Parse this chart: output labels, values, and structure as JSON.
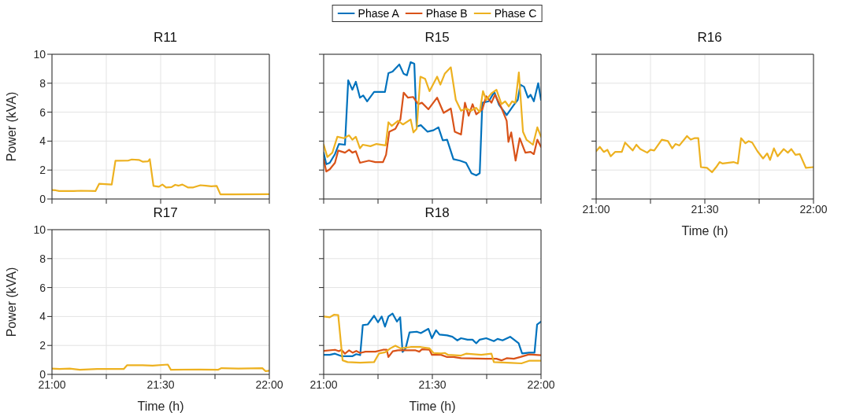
{
  "chart_data": [
    {
      "type": "line",
      "title": "R11",
      "ylabel": "Power (kVA)",
      "xlim": [
        21,
        22
      ],
      "xticks": [
        {
          "value": 21,
          "label": null
        },
        {
          "value": 21.25,
          "label": null
        },
        {
          "value": 21.5,
          "label": null
        },
        {
          "value": 21.75,
          "label": null
        },
        {
          "value": 22,
          "label": null
        }
      ],
      "ylim": [
        0,
        10
      ],
      "yticks": [
        0,
        2,
        4,
        6,
        8,
        10
      ],
      "grid": true,
      "tick_labels": "y",
      "series": [
        {
          "color": "#edb120",
          "x": [
            21,
            21.017,
            21.033,
            21.1,
            21.133,
            21.2,
            21.217,
            21.275,
            21.292,
            21.35,
            21.367,
            21.4,
            21.417,
            21.442,
            21.45,
            21.467,
            21.492,
            21.508,
            21.525,
            21.55,
            21.567,
            21.583,
            21.6,
            21.625,
            21.65,
            21.683,
            21.708,
            21.733,
            21.758,
            21.775,
            21.833,
            22
          ],
          "values": [
            0.62,
            0.6,
            0.55,
            0.55,
            0.57,
            0.55,
            1.05,
            1.0,
            2.64,
            2.65,
            2.73,
            2.7,
            2.58,
            2.6,
            2.75,
            0.9,
            0.85,
            1.0,
            0.8,
            0.82,
            0.98,
            0.92,
            1.0,
            0.8,
            0.8,
            0.95,
            0.92,
            0.88,
            0.9,
            0.32,
            0.32,
            0.33
          ]
        }
      ]
    },
    {
      "type": "line",
      "title": "R15",
      "xlim": [
        21,
        22
      ],
      "xticks": [
        {
          "value": 21,
          "label": null
        },
        {
          "value": 21.25,
          "label": null
        },
        {
          "value": 21.5,
          "label": null
        },
        {
          "value": 21.75,
          "label": null
        },
        {
          "value": 22,
          "label": null
        }
      ],
      "ylim": [
        0,
        10
      ],
      "yticks": [
        {
          "value": 0,
          "label": null
        },
        {
          "value": 2,
          "label": null
        },
        {
          "value": 4,
          "label": null
        },
        {
          "value": 6,
          "label": null
        },
        {
          "value": 8,
          "label": null
        },
        {
          "value": 10,
          "label": null
        }
      ],
      "grid": true,
      "tick_labels": false,
      "legend": "top",
      "series": [
        {
          "name": "Phase A",
          "color": "#0072bd",
          "x": [
            21,
            21.012,
            21.028,
            21.052,
            21.07,
            21.098,
            21.113,
            21.132,
            21.148,
            21.167,
            21.182,
            21.2,
            21.232,
            21.282,
            21.298,
            21.317,
            21.348,
            21.368,
            21.383,
            21.4,
            21.417,
            21.428,
            21.447,
            21.478,
            21.505,
            21.528,
            21.548,
            21.568,
            21.597,
            21.627,
            21.655,
            21.68,
            21.702,
            21.718,
            21.73,
            21.76,
            21.785,
            21.807,
            21.842,
            21.875,
            21.893,
            21.905,
            21.922,
            21.94,
            21.952,
            21.967,
            21.987,
            22
          ],
          "values": [
            3.2,
            2.4,
            2.5,
            3.1,
            3.8,
            3.75,
            8.2,
            7.55,
            8.1,
            7.0,
            7.15,
            6.75,
            7.4,
            7.4,
            8.7,
            8.8,
            9.3,
            8.65,
            8.55,
            9.45,
            9.35,
            5.0,
            5.1,
            4.65,
            4.75,
            4.95,
            4.05,
            4.1,
            2.75,
            2.65,
            2.5,
            1.78,
            1.63,
            1.78,
            6.65,
            6.75,
            7.4,
            6.5,
            5.8,
            6.5,
            6.85,
            7.9,
            7.75,
            7.0,
            7.2,
            6.75,
            8.0,
            6.85
          ]
        },
        {
          "name": "Phase B",
          "color": "#d95319",
          "x": [
            21,
            21.012,
            21.028,
            21.052,
            21.067,
            21.098,
            21.117,
            21.132,
            21.148,
            21.167,
            21.208,
            21.238,
            21.273,
            21.287,
            21.302,
            21.33,
            21.353,
            21.368,
            21.388,
            21.412,
            21.435,
            21.452,
            21.482,
            21.522,
            21.552,
            21.585,
            21.603,
            21.632,
            21.65,
            21.667,
            21.685,
            21.702,
            21.73,
            21.748,
            21.772,
            21.788,
            21.818,
            21.842,
            21.85,
            21.863,
            21.883,
            21.902,
            21.928,
            21.952,
            21.967,
            21.983,
            22
          ],
          "values": [
            2.75,
            1.9,
            2.05,
            2.5,
            3.35,
            3.2,
            3.4,
            3.2,
            3.3,
            2.5,
            2.65,
            2.55,
            2.55,
            3.05,
            4.65,
            4.85,
            5.5,
            7.35,
            7.0,
            7.05,
            6.55,
            6.65,
            6.2,
            7.0,
            5.95,
            6.25,
            4.65,
            4.45,
            6.65,
            5.75,
            6.55,
            5.85,
            6.2,
            7.1,
            6.65,
            7.2,
            6.3,
            5.4,
            3.95,
            4.6,
            2.65,
            4.2,
            3.2,
            3.25,
            3.1,
            4.1,
            3.6
          ]
        },
        {
          "name": "Phase C",
          "color": "#edb120",
          "x": [
            21,
            21.017,
            21.04,
            21.063,
            21.093,
            21.117,
            21.132,
            21.148,
            21.167,
            21.18,
            21.215,
            21.243,
            21.285,
            21.298,
            21.313,
            21.342,
            21.365,
            21.4,
            21.413,
            21.428,
            21.445,
            21.467,
            21.487,
            21.522,
            21.537,
            21.557,
            21.585,
            21.608,
            21.632,
            21.655,
            21.678,
            21.702,
            21.718,
            21.733,
            21.748,
            21.772,
            21.795,
            21.818,
            21.835,
            21.852,
            21.867,
            21.882,
            21.898,
            21.917,
            21.933,
            21.963,
            21.983,
            22
          ],
          "values": [
            3.75,
            2.9,
            3.2,
            4.3,
            4.2,
            4.4,
            4.1,
            4.3,
            3.5,
            3.75,
            3.65,
            3.8,
            3.7,
            5.3,
            5.05,
            5.4,
            5.15,
            5.5,
            4.6,
            4.85,
            8.45,
            8.3,
            7.45,
            8.45,
            7.9,
            8.65,
            9.1,
            6.85,
            6.1,
            6.25,
            6.1,
            6.3,
            6.0,
            7.45,
            6.85,
            7.3,
            7.55,
            6.55,
            6.75,
            6.4,
            6.75,
            6.65,
            8.75,
            4.65,
            4.1,
            3.75,
            4.95,
            4.3
          ]
        }
      ]
    },
    {
      "type": "line",
      "title": "R16",
      "xlabel": "Time (h)",
      "xlim": [
        21,
        22
      ],
      "xticks": [
        {
          "value": 21,
          "label": "21:00"
        },
        {
          "value": 21.25,
          "label": null
        },
        {
          "value": 21.5,
          "label": "21:30"
        },
        {
          "value": 21.75,
          "label": null
        },
        {
          "value": 22,
          "label": "22:00"
        }
      ],
      "ylim": [
        0,
        10
      ],
      "yticks": [
        {
          "value": 0,
          "label": null
        },
        {
          "value": 2,
          "label": null
        },
        {
          "value": 4,
          "label": null
        },
        {
          "value": 6,
          "label": null
        },
        {
          "value": 8,
          "label": null
        },
        {
          "value": 10,
          "label": null
        }
      ],
      "grid": true,
      "tick_labels": "x",
      "series": [
        {
          "color": "#edb120",
          "x": [
            21,
            21.017,
            21.035,
            21.052,
            21.067,
            21.087,
            21.118,
            21.133,
            21.168,
            21.185,
            21.203,
            21.235,
            21.25,
            21.267,
            21.302,
            21.33,
            21.35,
            21.365,
            21.383,
            21.418,
            21.435,
            21.452,
            21.47,
            21.482,
            21.51,
            21.533,
            21.552,
            21.568,
            21.582,
            21.632,
            21.652,
            21.667,
            21.687,
            21.702,
            21.718,
            21.742,
            21.768,
            21.787,
            21.8,
            21.818,
            21.835,
            21.863,
            21.882,
            21.898,
            21.917,
            21.937,
            21.965,
            22
          ],
          "values": [
            3.3,
            3.6,
            3.25,
            3.4,
            2.95,
            3.25,
            3.25,
            3.9,
            3.35,
            3.75,
            3.45,
            3.2,
            3.4,
            3.35,
            4.1,
            4.0,
            3.5,
            3.8,
            3.7,
            4.35,
            4.1,
            4.2,
            4.2,
            2.2,
            2.15,
            1.85,
            2.2,
            2.55,
            2.45,
            2.55,
            2.45,
            4.2,
            3.85,
            4.0,
            3.9,
            3.3,
            2.8,
            3.15,
            2.7,
            3.5,
            2.95,
            3.45,
            3.2,
            3.45,
            3.05,
            3.1,
            2.15,
            2.2
          ]
        }
      ]
    },
    {
      "type": "line",
      "title": "R17",
      "xlabel": "Time (h)",
      "ylabel": "Power (kVA)",
      "xlim": [
        21,
        22
      ],
      "xticks": [
        {
          "value": 21,
          "label": "21:00"
        },
        {
          "value": 21.25,
          "label": null
        },
        {
          "value": 21.5,
          "label": "21:30"
        },
        {
          "value": 21.75,
          "label": null
        },
        {
          "value": 22,
          "label": "22:00"
        }
      ],
      "ylim": [
        0,
        10
      ],
      "yticks": [
        0,
        2,
        4,
        6,
        8,
        10
      ],
      "grid": true,
      "series": [
        {
          "color": "#edb120",
          "x": [
            21,
            21.035,
            21.082,
            21.128,
            21.208,
            21.33,
            21.345,
            21.417,
            21.463,
            21.533,
            21.547,
            21.673,
            21.765,
            21.78,
            21.858,
            21.968,
            21.983,
            22
          ],
          "values": [
            0.4,
            0.37,
            0.4,
            0.32,
            0.37,
            0.37,
            0.63,
            0.63,
            0.6,
            0.68,
            0.32,
            0.34,
            0.32,
            0.43,
            0.4,
            0.43,
            0.22,
            0.25
          ]
        }
      ]
    },
    {
      "type": "line",
      "title": "R18",
      "xlabel": "Time (h)",
      "xlim": [
        21,
        22
      ],
      "xticks": [
        {
          "value": 21,
          "label": "21:00"
        },
        {
          "value": 21.25,
          "label": null
        },
        {
          "value": 21.5,
          "label": "21:30"
        },
        {
          "value": 21.75,
          "label": null
        },
        {
          "value": 22,
          "label": "22:00"
        }
      ],
      "ylim": [
        0,
        10
      ],
      "yticks": [
        {
          "value": 0,
          "label": null
        },
        {
          "value": 2,
          "label": null
        },
        {
          "value": 4,
          "label": null
        },
        {
          "value": 6,
          "label": null
        },
        {
          "value": 8,
          "label": null
        },
        {
          "value": 10,
          "label": null
        }
      ],
      "grid": true,
      "tick_labels": "x",
      "series": [
        {
          "color": "#0072bd",
          "x": [
            21,
            21.028,
            21.052,
            21.082,
            21.133,
            21.15,
            21.168,
            21.18,
            21.203,
            21.232,
            21.25,
            21.267,
            21.282,
            21.298,
            21.317,
            21.337,
            21.352,
            21.363,
            21.377,
            21.395,
            21.428,
            21.447,
            21.482,
            21.498,
            21.517,
            21.533,
            21.568,
            21.592,
            21.615,
            21.632,
            21.662,
            21.685,
            21.702,
            21.718,
            21.748,
            21.783,
            21.8,
            21.823,
            21.858,
            21.897,
            21.913,
            21.945,
            21.97,
            21.982,
            22
          ],
          "values": [
            1.35,
            1.35,
            1.43,
            1.26,
            1.26,
            1.4,
            1.33,
            3.4,
            3.45,
            4.05,
            3.6,
            4.0,
            3.3,
            4.0,
            4.2,
            3.65,
            3.95,
            1.55,
            1.8,
            2.9,
            2.95,
            2.85,
            3.15,
            2.5,
            3.05,
            2.75,
            2.7,
            2.6,
            2.35,
            2.5,
            2.4,
            2.4,
            2.15,
            2.4,
            2.5,
            2.3,
            2.45,
            2.35,
            2.6,
            2.15,
            1.45,
            1.5,
            1.5,
            3.45,
            3.65
          ]
        },
        {
          "color": "#d95319",
          "x": [
            21,
            21.052,
            21.07,
            21.082,
            21.098,
            21.117,
            21.133,
            21.15,
            21.168,
            21.192,
            21.238,
            21.273,
            21.29,
            21.298,
            21.318,
            21.342,
            21.423,
            21.44,
            21.452,
            21.487,
            21.498,
            21.54,
            21.568,
            21.597,
            21.632,
            21.748,
            21.795,
            21.818,
            21.842,
            21.875,
            21.905,
            21.945,
            22
          ],
          "values": [
            1.62,
            1.7,
            1.6,
            1.7,
            1.43,
            1.66,
            1.5,
            1.62,
            1.48,
            1.57,
            1.57,
            1.7,
            1.7,
            1.2,
            1.6,
            1.66,
            1.66,
            1.57,
            1.73,
            1.7,
            1.35,
            1.35,
            1.2,
            1.2,
            1.12,
            1.08,
            1.08,
            0.97,
            1.12,
            1.08,
            1.2,
            1.38,
            1.33
          ]
        },
        {
          "color": "#edb120",
          "x": [
            21,
            21.028,
            21.047,
            21.067,
            21.087,
            21.11,
            21.168,
            21.232,
            21.255,
            21.283,
            21.307,
            21.33,
            21.353,
            21.4,
            21.447,
            21.487,
            21.505,
            21.54,
            21.557,
            21.573,
            21.632,
            21.655,
            21.725,
            21.772,
            21.783,
            21.863,
            21.91,
            21.945,
            22
          ],
          "values": [
            4.0,
            3.95,
            4.12,
            4.1,
            0.97,
            0.85,
            0.81,
            0.85,
            1.45,
            1.53,
            1.8,
            1.98,
            1.8,
            1.89,
            1.89,
            1.8,
            1.48,
            1.45,
            1.48,
            1.35,
            1.3,
            1.43,
            1.35,
            1.43,
            0.85,
            0.79,
            0.76,
            0.94,
            0.94
          ]
        }
      ]
    }
  ]
}
